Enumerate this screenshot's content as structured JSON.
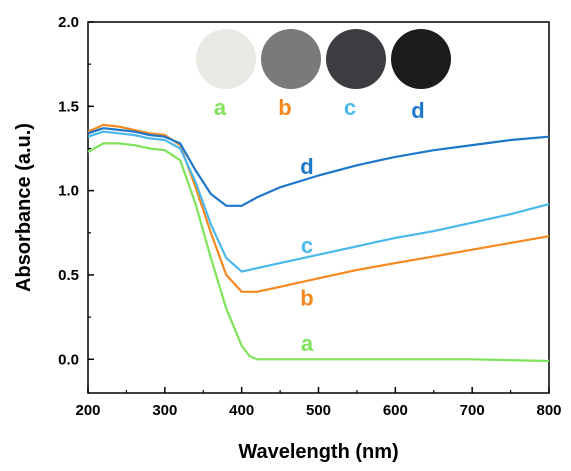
{
  "chart_data": {
    "type": "line",
    "xlabel": "Wavelength (nm)",
    "ylabel": "Absorbance (a.u.)",
    "xlim": [
      200,
      800
    ],
    "ylim": [
      -0.2,
      2.0
    ],
    "x_ticks": [
      "200",
      "300",
      "400",
      "500",
      "600",
      "700",
      "800"
    ],
    "y_ticks": [
      "0.0",
      "0.5",
      "1.0",
      "1.5",
      "2.0"
    ],
    "grid": false,
    "series": [
      {
        "name": "a",
        "color": "#7ee35a",
        "x": [
          200,
          220,
          240,
          260,
          280,
          300,
          320,
          340,
          360,
          380,
          400,
          410,
          420,
          450,
          500,
          600,
          700,
          800
        ],
        "y": [
          1.23,
          1.28,
          1.28,
          1.27,
          1.25,
          1.24,
          1.18,
          0.92,
          0.6,
          0.3,
          0.08,
          0.02,
          0.0,
          0.0,
          0.0,
          0.0,
          0.0,
          -0.01
        ]
      },
      {
        "name": "b",
        "color": "#f5891f",
        "x": [
          200,
          220,
          240,
          260,
          280,
          300,
          320,
          340,
          360,
          380,
          400,
          420,
          450,
          500,
          550,
          600,
          650,
          700,
          750,
          800
        ],
        "y": [
          1.35,
          1.39,
          1.38,
          1.36,
          1.34,
          1.33,
          1.27,
          1.02,
          0.75,
          0.5,
          0.4,
          0.4,
          0.43,
          0.48,
          0.53,
          0.57,
          0.61,
          0.65,
          0.69,
          0.73
        ]
      },
      {
        "name": "c",
        "color": "#4ab8ec",
        "x": [
          200,
          220,
          240,
          260,
          280,
          300,
          320,
          340,
          360,
          380,
          400,
          420,
          450,
          500,
          550,
          600,
          650,
          700,
          750,
          800
        ],
        "y": [
          1.32,
          1.35,
          1.34,
          1.33,
          1.31,
          1.3,
          1.25,
          1.05,
          0.8,
          0.6,
          0.52,
          0.54,
          0.57,
          0.62,
          0.67,
          0.72,
          0.76,
          0.81,
          0.86,
          0.92
        ]
      },
      {
        "name": "d",
        "color": "#1f77c9",
        "x": [
          200,
          220,
          240,
          260,
          280,
          300,
          320,
          340,
          360,
          380,
          400,
          420,
          450,
          500,
          550,
          600,
          650,
          700,
          750,
          800
        ],
        "y": [
          1.34,
          1.37,
          1.36,
          1.35,
          1.33,
          1.32,
          1.28,
          1.12,
          0.98,
          0.91,
          0.91,
          0.96,
          1.02,
          1.09,
          1.15,
          1.2,
          1.24,
          1.27,
          1.3,
          1.32
        ]
      }
    ],
    "curve_labels": [
      {
        "text": "d",
        "x": 485,
        "y": 1.1,
        "color": "#1f77c9"
      },
      {
        "text": "c",
        "x": 485,
        "y": 0.63,
        "color": "#4ab8ec"
      },
      {
        "text": "b",
        "x": 485,
        "y": 0.32,
        "color": "#f5891f"
      },
      {
        "text": "a",
        "x": 485,
        "y": 0.05,
        "color": "#7ee35a"
      }
    ],
    "sample_legend": [
      {
        "label": "a",
        "fill": "#e9e9e4",
        "label_color": "#7ee35a"
      },
      {
        "label": "b",
        "fill": "#7a7a7a",
        "label_color": "#f5891f"
      },
      {
        "label": "c",
        "fill": "#3b3d40",
        "label_color": "#4ab8ec"
      },
      {
        "label": "d",
        "fill": "#1b1c1e",
        "label_color": "#1f77c9"
      }
    ]
  }
}
